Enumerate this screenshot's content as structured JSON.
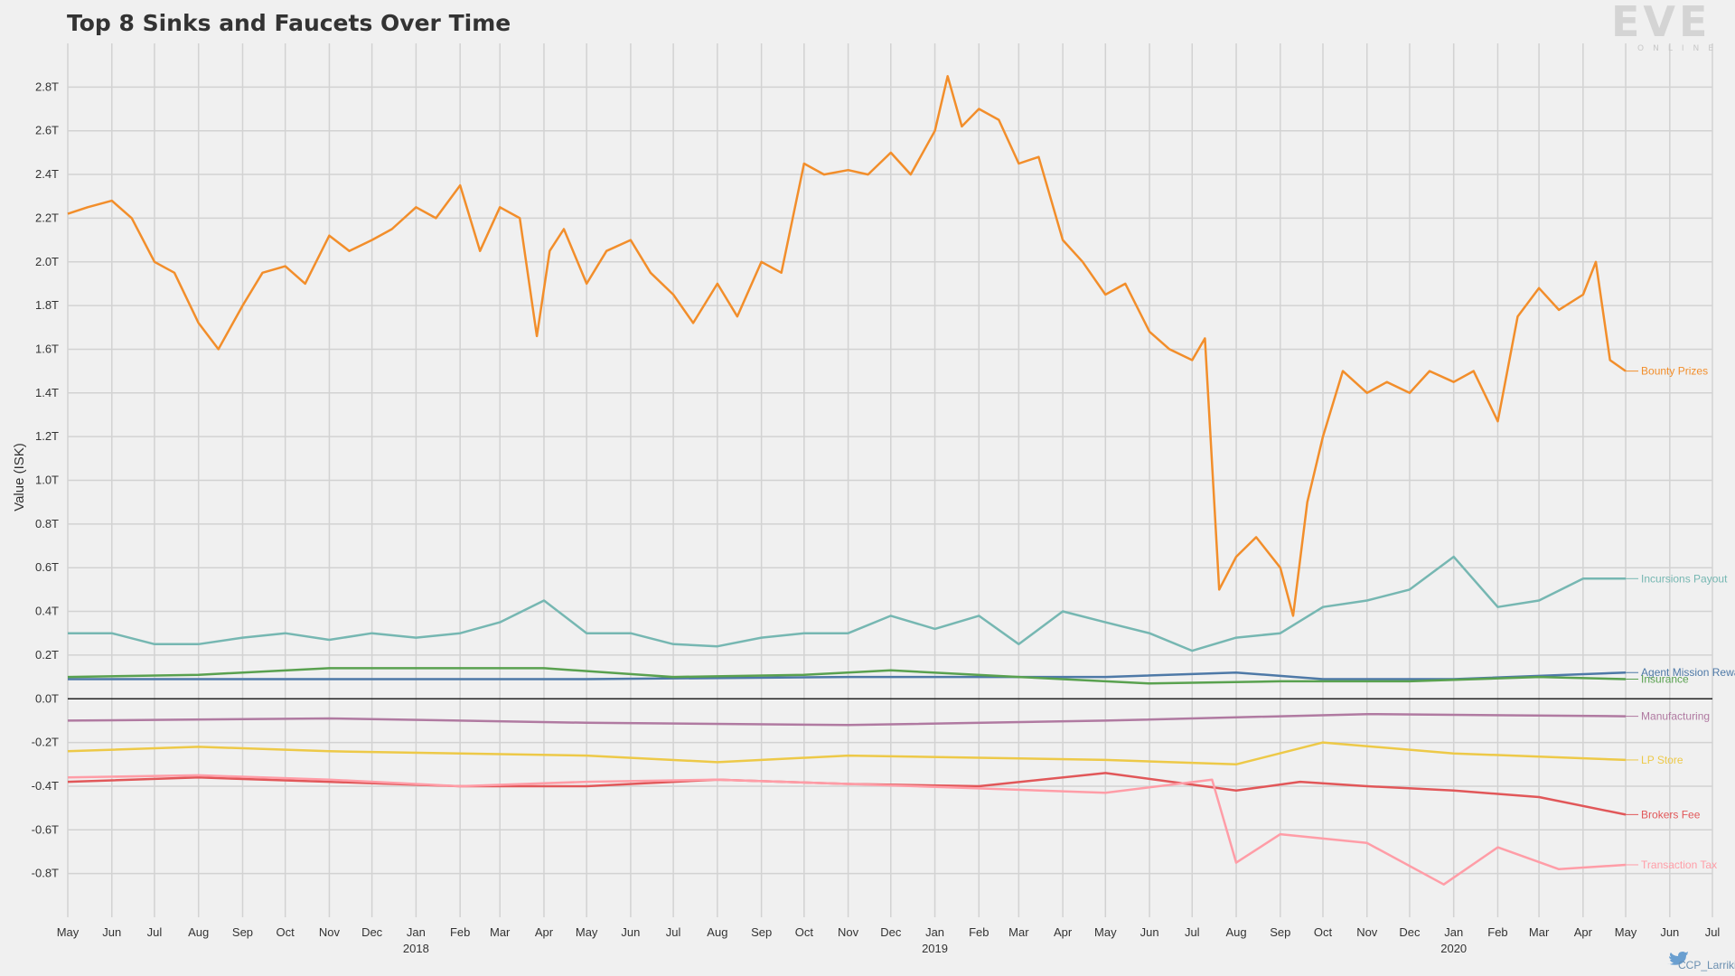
{
  "branding": {
    "logo_text": "EVE",
    "logo_subtext": "ONLINE",
    "credit": "CCP_Larrikin"
  },
  "chart_data": {
    "type": "line",
    "title": "Top 8 Sinks and Faucets Over Time",
    "ylabel": "Value (ISK)",
    "xlabel": "",
    "ylim": [
      -1.0,
      3.0
    ],
    "y_ticks": [
      -0.8,
      -0.6,
      -0.4,
      -0.2,
      0.0,
      0.2,
      0.4,
      0.6,
      0.8,
      1.0,
      1.2,
      1.4,
      1.6,
      1.8,
      2.0,
      2.2,
      2.4,
      2.6,
      2.8
    ],
    "y_tick_labels": [
      "-0.8T",
      "-0.6T",
      "-0.4T",
      "-0.2T",
      "0.0T",
      "0.2T",
      "0.4T",
      "0.6T",
      "0.8T",
      "1.0T",
      "1.2T",
      "1.4T",
      "1.6T",
      "1.8T",
      "2.0T",
      "2.2T",
      "2.4T",
      "2.6T",
      "2.8T"
    ],
    "x_range": [
      "2017-05",
      "2020-07"
    ],
    "x_ticks": [
      "2017-05",
      "2017-06",
      "2017-07",
      "2017-08",
      "2017-09",
      "2017-10",
      "2017-11",
      "2017-12",
      "2018-01",
      "2018-02",
      "2018-03",
      "2018-04",
      "2018-05",
      "2018-06",
      "2018-07",
      "2018-08",
      "2018-09",
      "2018-10",
      "2018-11",
      "2018-12",
      "2019-01",
      "2019-02",
      "2019-03",
      "2019-04",
      "2019-05",
      "2019-06",
      "2019-07",
      "2019-08",
      "2019-09",
      "2019-10",
      "2019-11",
      "2019-12",
      "2020-01",
      "2020-02",
      "2020-03",
      "2020-04",
      "2020-05",
      "2020-06",
      "2020-07"
    ],
    "x_tick_labels": [
      "May",
      "Jun",
      "Jul",
      "Aug",
      "Sep",
      "Oct",
      "Nov",
      "Dec",
      "Jan",
      "Feb",
      "Mar",
      "Apr",
      "May",
      "Jun",
      "Jul",
      "Aug",
      "Sep",
      "Oct",
      "Nov",
      "Dec",
      "Jan",
      "Feb",
      "Mar",
      "Apr",
      "May",
      "Jun",
      "Jul",
      "Aug",
      "Sep",
      "Oct",
      "Nov",
      "Dec",
      "Jan",
      "Feb",
      "Mar",
      "Apr",
      "May",
      "Jun",
      "Jul"
    ],
    "year_labels": [
      {
        "x": "2018-01",
        "label": "2018"
      },
      {
        "x": "2019-01",
        "label": "2019"
      },
      {
        "x": "2020-01",
        "label": "2020"
      }
    ],
    "grid": true,
    "legend": "inline-right",
    "series": [
      {
        "name": "Bounty Prizes",
        "color": "#f28e2b",
        "x": [
          "2017-05-01",
          "2017-05-15",
          "2017-06-01",
          "2017-06-15",
          "2017-07-01",
          "2017-07-15",
          "2017-08-01",
          "2017-08-15",
          "2017-09-01",
          "2017-09-15",
          "2017-10-01",
          "2017-10-15",
          "2017-11-01",
          "2017-11-15",
          "2017-12-01",
          "2017-12-15",
          "2018-01-01",
          "2018-01-15",
          "2018-02-01",
          "2018-02-15",
          "2018-03-01",
          "2018-03-15",
          "2018-03-27",
          "2018-04-05",
          "2018-04-15",
          "2018-05-01",
          "2018-05-15",
          "2018-06-01",
          "2018-06-15",
          "2018-07-01",
          "2018-07-15",
          "2018-08-01",
          "2018-08-15",
          "2018-09-01",
          "2018-09-15",
          "2018-10-01",
          "2018-10-15",
          "2018-11-01",
          "2018-11-15",
          "2018-12-01",
          "2018-12-15",
          "2019-01-01",
          "2019-01-10",
          "2019-01-20",
          "2019-02-01",
          "2019-02-15",
          "2019-03-01",
          "2019-03-15",
          "2019-04-01",
          "2019-04-15",
          "2019-05-01",
          "2019-05-15",
          "2019-06-01",
          "2019-06-15",
          "2019-07-01",
          "2019-07-10",
          "2019-07-20",
          "2019-08-01",
          "2019-08-15",
          "2019-09-01",
          "2019-09-10",
          "2019-09-20",
          "2019-10-01",
          "2019-10-15",
          "2019-11-01",
          "2019-11-15",
          "2019-12-01",
          "2019-12-15",
          "2020-01-01",
          "2020-01-15",
          "2020-02-01",
          "2020-02-15",
          "2020-03-01",
          "2020-03-15",
          "2020-04-01",
          "2020-04-10",
          "2020-04-20",
          "2020-05-01"
        ],
        "y": [
          2.22,
          2.25,
          2.28,
          2.2,
          2.0,
          1.95,
          1.72,
          1.6,
          1.8,
          1.95,
          1.98,
          1.9,
          2.12,
          2.05,
          2.1,
          2.15,
          2.25,
          2.2,
          2.35,
          2.05,
          2.25,
          2.2,
          1.66,
          2.05,
          2.15,
          1.9,
          2.05,
          2.1,
          1.95,
          1.85,
          1.72,
          1.9,
          1.75,
          2.0,
          1.95,
          2.45,
          2.4,
          2.42,
          2.4,
          2.5,
          2.4,
          2.6,
          2.85,
          2.62,
          2.7,
          2.65,
          2.45,
          2.48,
          2.1,
          2.0,
          1.85,
          1.9,
          1.68,
          1.6,
          1.55,
          1.65,
          0.5,
          0.65,
          0.74,
          0.6,
          0.38,
          0.9,
          1.2,
          1.5,
          1.4,
          1.45,
          1.4,
          1.5,
          1.45,
          1.5,
          1.27,
          1.75,
          1.88,
          1.78,
          1.85,
          2.0,
          1.55,
          1.5
        ]
      },
      {
        "name": "Incursions Payout",
        "color": "#76b7b2",
        "x": [
          "2017-05-01",
          "2017-06-01",
          "2017-07-01",
          "2017-08-01",
          "2017-09-01",
          "2017-10-01",
          "2017-11-01",
          "2017-12-01",
          "2018-01-01",
          "2018-02-01",
          "2018-03-01",
          "2018-04-01",
          "2018-05-01",
          "2018-06-01",
          "2018-07-01",
          "2018-08-01",
          "2018-09-01",
          "2018-10-01",
          "2018-11-01",
          "2018-12-01",
          "2019-01-01",
          "2019-02-01",
          "2019-03-01",
          "2019-04-01",
          "2019-05-01",
          "2019-06-01",
          "2019-07-01",
          "2019-08-01",
          "2019-09-01",
          "2019-10-01",
          "2019-11-01",
          "2019-12-01",
          "2020-01-01",
          "2020-02-01",
          "2020-03-01",
          "2020-04-01",
          "2020-05-01"
        ],
        "y": [
          0.3,
          0.3,
          0.25,
          0.25,
          0.28,
          0.3,
          0.27,
          0.3,
          0.28,
          0.3,
          0.35,
          0.45,
          0.3,
          0.3,
          0.25,
          0.24,
          0.28,
          0.3,
          0.3,
          0.38,
          0.32,
          0.38,
          0.25,
          0.4,
          0.35,
          0.3,
          0.22,
          0.28,
          0.3,
          0.42,
          0.45,
          0.5,
          0.65,
          0.42,
          0.45,
          0.55,
          0.55
        ]
      },
      {
        "name": "Agent Mission Rewards",
        "color": "#4e79a7",
        "x": [
          "2017-05-01",
          "2017-11-01",
          "2018-05-01",
          "2018-11-01",
          "2019-05-01",
          "2019-08-01",
          "2019-10-01",
          "2020-01-01",
          "2020-05-01"
        ],
        "y": [
          0.09,
          0.09,
          0.09,
          0.1,
          0.1,
          0.12,
          0.09,
          0.09,
          0.12
        ]
      },
      {
        "name": "Insurance",
        "color": "#59a14f",
        "x": [
          "2017-05-01",
          "2017-08-01",
          "2017-11-01",
          "2018-02-01",
          "2018-04-01",
          "2018-07-01",
          "2018-10-01",
          "2018-12-01",
          "2019-03-01",
          "2019-06-01",
          "2019-09-01",
          "2019-12-01",
          "2020-03-01",
          "2020-05-01"
        ],
        "y": [
          0.1,
          0.11,
          0.14,
          0.14,
          0.14,
          0.1,
          0.11,
          0.13,
          0.1,
          0.07,
          0.08,
          0.08,
          0.1,
          0.09
        ]
      },
      {
        "name": "Manufacturing",
        "color": "#b07aa1",
        "x": [
          "2017-05-01",
          "2017-11-01",
          "2018-05-01",
          "2018-11-01",
          "2019-05-01",
          "2019-11-01",
          "2020-05-01"
        ],
        "y": [
          -0.1,
          -0.09,
          -0.11,
          -0.12,
          -0.1,
          -0.07,
          -0.08
        ]
      },
      {
        "name": "LP Store",
        "color": "#edc948",
        "x": [
          "2017-05-01",
          "2017-08-01",
          "2017-11-01",
          "2018-02-01",
          "2018-05-01",
          "2018-08-01",
          "2018-11-01",
          "2019-02-01",
          "2019-05-01",
          "2019-08-01",
          "2019-10-01",
          "2020-01-01",
          "2020-05-01"
        ],
        "y": [
          -0.24,
          -0.22,
          -0.24,
          -0.25,
          -0.26,
          -0.29,
          -0.26,
          -0.27,
          -0.28,
          -0.3,
          -0.2,
          -0.25,
          -0.28
        ]
      },
      {
        "name": "Brokers Fee",
        "color": "#e15759",
        "x": [
          "2017-05-01",
          "2017-08-01",
          "2017-11-01",
          "2018-02-01",
          "2018-05-01",
          "2018-08-01",
          "2018-11-01",
          "2019-02-01",
          "2019-05-01",
          "2019-08-01",
          "2019-09-15",
          "2019-11-01",
          "2020-01-01",
          "2020-03-01",
          "2020-05-01"
        ],
        "y": [
          -0.38,
          -0.36,
          -0.38,
          -0.4,
          -0.4,
          -0.37,
          -0.39,
          -0.4,
          -0.34,
          -0.42,
          -0.38,
          -0.4,
          -0.42,
          -0.45,
          -0.53
        ]
      },
      {
        "name": "Transaction Tax",
        "color": "#ff9da7",
        "x": [
          "2017-05-01",
          "2017-08-01",
          "2017-11-01",
          "2018-02-01",
          "2018-05-01",
          "2018-08-01",
          "2018-11-01",
          "2019-02-01",
          "2019-05-01",
          "2019-07-15",
          "2019-08-01",
          "2019-09-01",
          "2019-11-01",
          "2019-12-25",
          "2020-02-01",
          "2020-03-15",
          "2020-05-01"
        ],
        "y": [
          -0.36,
          -0.35,
          -0.37,
          -0.4,
          -0.38,
          -0.37,
          -0.39,
          -0.41,
          -0.43,
          -0.37,
          -0.75,
          -0.62,
          -0.66,
          -0.85,
          -0.68,
          -0.78,
          -0.76
        ]
      }
    ]
  }
}
